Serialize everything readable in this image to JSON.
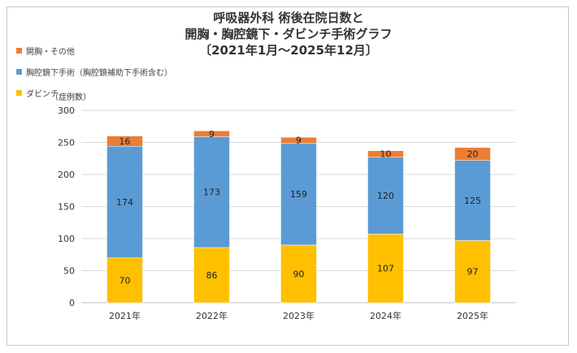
{
  "title": {
    "line1": "呼吸器外科 術後在院日数と",
    "line2": "開胸・胸腔鏡下・ダビンチ手術グラフ",
    "line3": "〔2021年1月～2025年12月〕"
  },
  "chart_data": {
    "type": "bar",
    "stacked": true,
    "categories": [
      "2021年",
      "2022年",
      "2023年",
      "2024年",
      "2025年"
    ],
    "series": [
      {
        "name": "ダビンチ",
        "color": "#ffc000",
        "values": [
          70,
          86,
          90,
          107,
          97
        ]
      },
      {
        "name": "胸腔鏡下手術（胸腔鏡補助下手術含む）",
        "color": "#5b9bd5",
        "values": [
          174,
          173,
          159,
          120,
          125
        ]
      },
      {
        "name": "開胸・その他",
        "color": "#ed7d31",
        "values": [
          16,
          9,
          9,
          10,
          20
        ]
      }
    ],
    "legend": [
      {
        "name": "開胸・その他",
        "color": "#ed7d31"
      },
      {
        "name": "胸腔鏡下手術（胸腔鏡補助下手術含む）",
        "color": "#5b9bd5"
      },
      {
        "name": "ダビンチ",
        "color": "#ffc000"
      }
    ],
    "ylabel": "（症例数）",
    "ylim": [
      0,
      300
    ],
    "yticks": [
      0,
      50,
      100,
      150,
      200,
      250,
      300
    ],
    "grid": true,
    "legend_position": "top-left"
  }
}
